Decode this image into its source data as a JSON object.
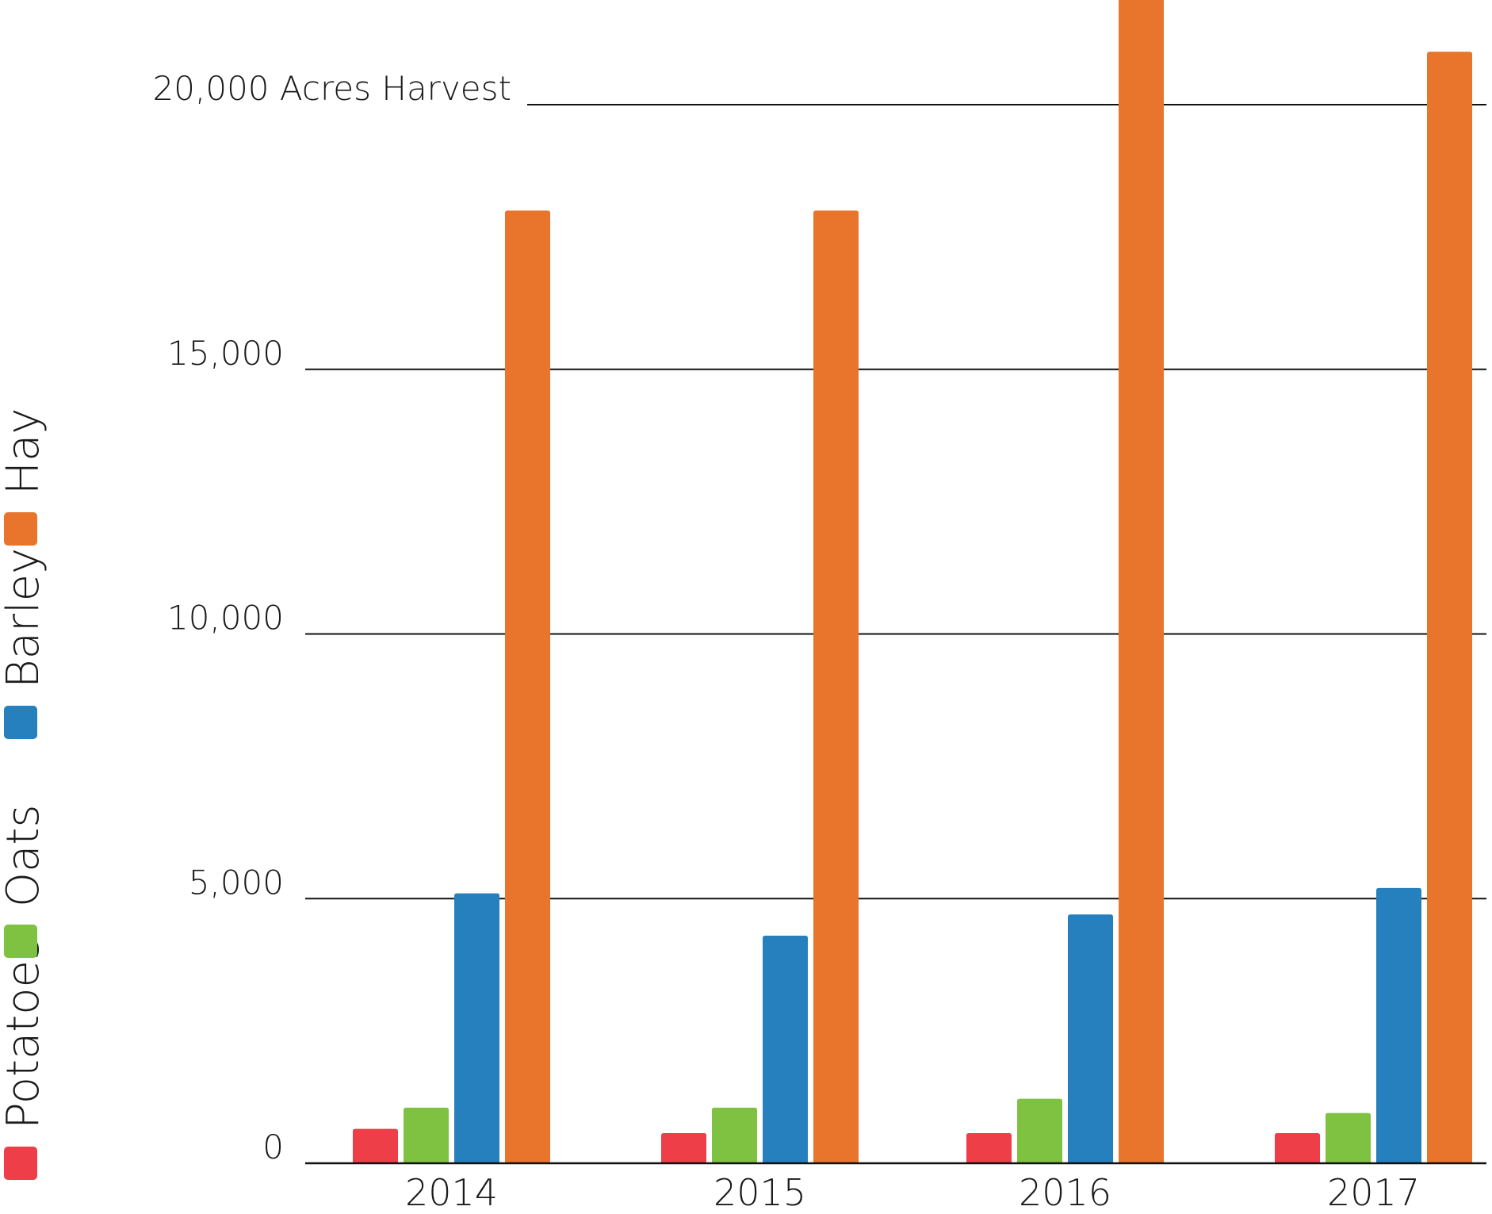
{
  "chart_data": {
    "type": "bar",
    "categories": [
      "2014",
      "2015",
      "2016",
      "2017"
    ],
    "series": [
      {
        "name": "Potatoes",
        "color": "#ee3e48",
        "values": [
          650,
          570,
          570,
          570
        ]
      },
      {
        "name": "Oats",
        "color": "#7fc242",
        "values": [
          1050,
          1050,
          1220,
          950
        ]
      },
      {
        "name": "Barley",
        "color": "#2680bd",
        "values": [
          5100,
          4300,
          4700,
          5200
        ]
      },
      {
        "name": "Hay",
        "color": "#e8752b",
        "values": [
          18000,
          18000,
          22000,
          21000
        ]
      }
    ],
    "y_ticks": [
      {
        "value": 0,
        "label": "0"
      },
      {
        "value": 5000,
        "label": "5,000"
      },
      {
        "value": 10000,
        "label": "10,000"
      },
      {
        "value": 15000,
        "label": "15,000"
      },
      {
        "value": 20000,
        "label": "20,000 Acres Harvest"
      }
    ],
    "ylim": [
      0,
      22000
    ],
    "grid": true,
    "legend_position": "left-vertical"
  }
}
